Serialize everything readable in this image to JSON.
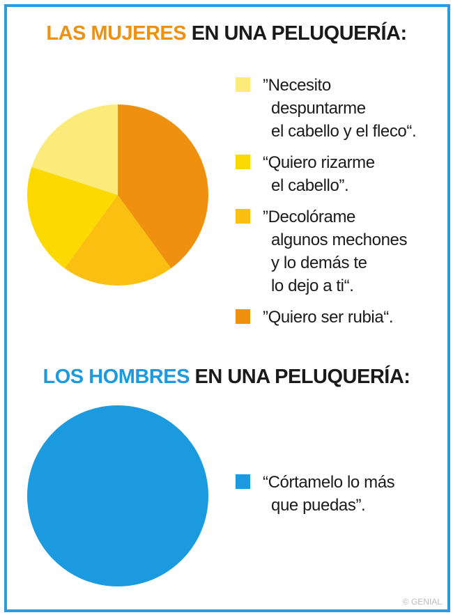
{
  "chart_data": [
    {
      "type": "pie",
      "title": {
        "highlight": "LAS MUJERES",
        "text": "EN UNA PELUQUERÍA:",
        "color": "#f0900f"
      },
      "categories": [
        "”Necesito\ndespuntarme\nel cabello y el fleco“.",
        "“Quiero rizarme\nel cabello”.",
        "”Decolórame\nalgunos mechones\ny lo demás te\nlo dejo a ti“.",
        "”Quiero ser rubia“."
      ],
      "values": [
        20,
        20,
        20,
        40
      ],
      "colors": [
        "#fbeb7a",
        "#fcd900",
        "#fbbf12",
        "#f0900f"
      ]
    },
    {
      "type": "pie",
      "title": {
        "highlight": "LOS HOMBRES",
        "text": "EN UNA PELUQUERÍA:",
        "color": "#1c9ae0"
      },
      "categories": [
        "“Córtamelo lo más\nque puedas”."
      ],
      "values": [
        100
      ],
      "colors": [
        "#1c9ae0"
      ]
    }
  ],
  "watermark": "© GENIAL"
}
